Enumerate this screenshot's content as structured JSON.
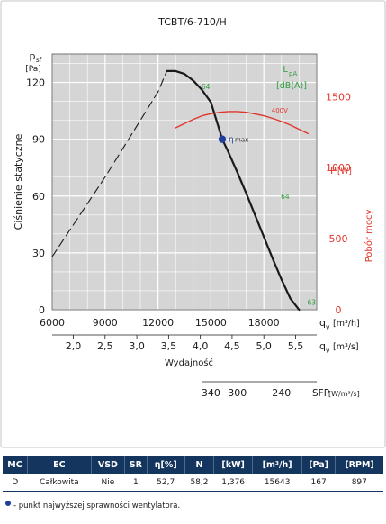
{
  "chart_data": {
    "type": "line",
    "title": "TCBT/6-710/H",
    "xlabel": "Wydajność",
    "x_primary": {
      "unit_symbol": "q",
      "unit_subscript": "v",
      "unit": "[m³/h]",
      "range": [
        6000,
        21000
      ],
      "ticks": [
        "6000",
        "9000",
        "12000",
        "15000",
        "18000"
      ],
      "tick_values": [
        6000,
        9000,
        12000,
        15000,
        18000
      ]
    },
    "x_secondary": {
      "unit_symbol": "q",
      "unit_subscript": "v",
      "unit": "[m³/s]",
      "ticks": [
        "2,0",
        "2,5",
        "3,0",
        "3,5",
        "4,0",
        "4,5",
        "5,0",
        "5,5"
      ],
      "tick_values": [
        2.0,
        2.5,
        3.0,
        3.5,
        4.0,
        4.5,
        5.0,
        5.5
      ]
    },
    "y_left": {
      "label": "Ciśnienie statyczne",
      "symbol": "p",
      "subscript": "sf",
      "unit": "[Pa]",
      "range": [
        0,
        135
      ],
      "ticks": [
        "0",
        "30",
        "60",
        "90",
        "120"
      ],
      "tick_values": [
        0,
        30,
        60,
        90,
        120
      ]
    },
    "y_right": {
      "label": "Pobór mocy",
      "symbol": "P",
      "unit": "[W]",
      "range": [
        0,
        1800
      ],
      "ticks": [
        "0",
        "500",
        "1000",
        "1500"
      ],
      "tick_values": [
        0,
        500,
        1000,
        1500
      ],
      "color": "#e0352b"
    },
    "sound_label": {
      "main": "L",
      "sub": "pA",
      "unit": "[dB(A)]",
      "color": "#2e9e3c"
    },
    "grid": true,
    "series": [
      {
        "style": "dashed",
        "color": "#1a1a1a",
        "x": [
          6000,
          7000,
          8000,
          9000,
          10000,
          11000,
          12000,
          12500
        ],
        "y": [
          28,
          42,
          56,
          70,
          85,
          100,
          115,
          126
        ]
      },
      {
        "style": "solid",
        "color": "#1a1a1a",
        "axis": "left",
        "x": [
          12500,
          13000,
          13500,
          14000,
          14500,
          15000,
          15643,
          16000,
          16500,
          17000,
          17500,
          18000,
          18500,
          19000,
          19500,
          20000
        ],
        "y": [
          126,
          126,
          124.5,
          121,
          116,
          109.5,
          90,
          83,
          72.5,
          61.5,
          50,
          38.5,
          27,
          16,
          6,
          0
        ]
      },
      {
        "style": "solid",
        "color": "#e0352b",
        "axis": "right",
        "name": "400V",
        "x": [
          13000,
          13500,
          14000,
          14500,
          15000,
          15500,
          16000,
          16500,
          17000,
          17500,
          18000,
          18500,
          19000,
          19500,
          20000,
          20500
        ],
        "y": [
          1280,
          1310,
          1340,
          1365,
          1380,
          1390,
          1395,
          1395,
          1390,
          1378,
          1365,
          1347,
          1325,
          1300,
          1270,
          1240
        ]
      }
    ],
    "sound_marks": [
      {
        "label": "64",
        "x": 14300,
        "y": 118
      },
      {
        "label": "64",
        "x": 18800,
        "y": 60
      },
      {
        "label": "63",
        "x": 20300,
        "y": 4
      }
    ],
    "best_efficiency_point": {
      "x": 15643,
      "y": 90,
      "label_main": "η",
      "label_sub": "max",
      "color": "#1f3f9a"
    },
    "sfp_scale": {
      "ticks": [
        "340",
        "300",
        "240"
      ],
      "tick_x": [
        15000,
        16500,
        19000
      ],
      "label": "SFP",
      "unit": "[W/m³/s]"
    }
  },
  "table": {
    "headers": [
      "MC",
      "EC",
      "VSD",
      "SR",
      "η[%]",
      "N",
      "[kW]",
      "[m³/h]",
      "[Pa]",
      "[RPM]"
    ],
    "row": [
      "D",
      "Całkowita",
      "Nie",
      "1",
      "52,7",
      "58,2",
      "1,376",
      "15643",
      "167",
      "897"
    ]
  },
  "footnote": "- punkt najwyższej sprawności wentylatora.",
  "colors": {
    "grid_bg": "#d5d5d5",
    "border": "#555555",
    "table_header": "#14365e"
  }
}
